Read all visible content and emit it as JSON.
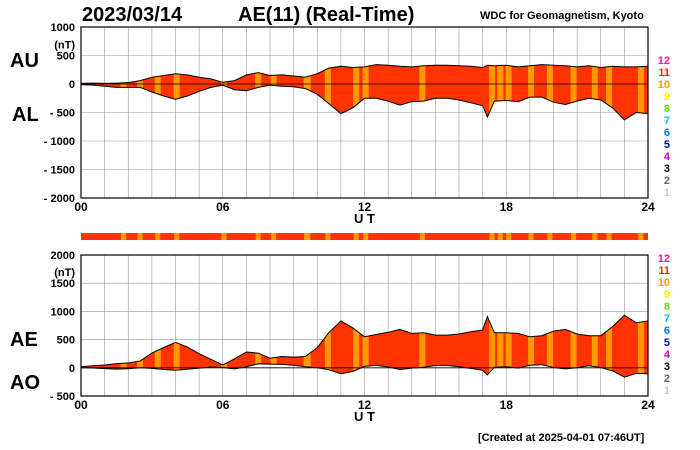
{
  "header": {
    "date": "2023/03/14",
    "title": "AE(11) (Real-Time)",
    "source": "WDC for Geomagnetism, Kyoto",
    "created": "[Created at 2025-04-01 07:46UT]"
  },
  "legend": {
    "levels": [
      "12",
      "11",
      "10",
      "9",
      "8",
      "7",
      "6",
      "5",
      "4",
      "3",
      "2",
      "1"
    ],
    "colors": [
      "#ff1493",
      "#ff2200",
      "#ff9900",
      "#ffee00",
      "#66dd00",
      "#00cccc",
      "#0077ff",
      "#0000cc",
      "#cc00cc",
      "#000000",
      "#666666",
      "#cccccc"
    ]
  },
  "colors": {
    "fill": "#ff3300",
    "stripe": "#ff9900",
    "line": "#000000",
    "grid": "#999999"
  },
  "chart_data": [
    {
      "type": "area",
      "panel": "upper",
      "labels": {
        "upper": "AU",
        "lower": "AL"
      },
      "unit": "(nT)",
      "ylim": [
        -2000,
        1000
      ],
      "yticks": [
        "1000",
        "500",
        "0",
        "- 500",
        "- 1000",
        "- 1500",
        "- 2000"
      ],
      "xlabel": "U T",
      "xlim": [
        0,
        24
      ],
      "xticks": [
        "00",
        "06",
        "12",
        "18",
        "24"
      ],
      "grid": true,
      "x": [
        0,
        0.5,
        1,
        1.5,
        2,
        2.5,
        3,
        3.5,
        4,
        4.5,
        5,
        5.5,
        6,
        6.5,
        7,
        7.5,
        8,
        8.5,
        9,
        9.5,
        10,
        10.5,
        11,
        11.5,
        12,
        12.5,
        13,
        13.5,
        14,
        14.5,
        15,
        15.5,
        16,
        16.5,
        17,
        17.2,
        17.5,
        18,
        18.5,
        19,
        19.5,
        20,
        20.5,
        21,
        21.5,
        22,
        22.5,
        23,
        23.5,
        24
      ],
      "series": [
        {
          "name": "AU",
          "values": [
            10,
            15,
            10,
            15,
            25,
            60,
            120,
            150,
            180,
            160,
            120,
            90,
            30,
            60,
            160,
            200,
            150,
            160,
            140,
            120,
            180,
            280,
            310,
            290,
            300,
            340,
            330,
            310,
            300,
            320,
            330,
            330,
            320,
            310,
            290,
            330,
            320,
            330,
            300,
            320,
            340,
            330,
            320,
            300,
            320,
            290,
            310,
            300,
            300,
            310
          ]
        },
        {
          "name": "AL",
          "values": [
            -10,
            -20,
            -40,
            -60,
            -60,
            -60,
            -140,
            -210,
            -270,
            -210,
            -130,
            -60,
            -20,
            -100,
            -120,
            -60,
            -20,
            -40,
            -50,
            -80,
            -180,
            -350,
            -520,
            -420,
            -250,
            -250,
            -300,
            -370,
            -310,
            -300,
            -250,
            -250,
            -280,
            -330,
            -380,
            -580,
            -300,
            -290,
            -310,
            -230,
            -230,
            -320,
            -360,
            -300,
            -250,
            -280,
            -420,
            -630,
            -500,
            -520
          ]
        }
      ],
      "stripe_hours": [
        1.8,
        2.5,
        3.25,
        4.05,
        6.05,
        7.5,
        8.15,
        9.55,
        9.6,
        10.45,
        11.65,
        12.05,
        14.45,
        17.4,
        17.75,
        18.1,
        19.05,
        19.85,
        20.85,
        21.75,
        22.35,
        23.7
      ]
    },
    {
      "type": "area",
      "panel": "lower",
      "labels": {
        "upper": "AE",
        "lower": "AO"
      },
      "unit": "(nT)",
      "ylim": [
        -500,
        2000
      ],
      "yticks": [
        "2000",
        "1500",
        "1000",
        "500",
        "0",
        "- 500"
      ],
      "xlabel": "U T",
      "xlim": [
        0,
        24
      ],
      "xticks": [
        "00",
        "06",
        "12",
        "18",
        "24"
      ],
      "grid": true,
      "x": [
        0,
        0.5,
        1,
        1.5,
        2,
        2.5,
        3,
        3.5,
        4,
        4.5,
        5,
        5.5,
        6,
        6.5,
        7,
        7.5,
        8,
        8.5,
        9,
        9.5,
        10,
        10.5,
        11,
        11.5,
        12,
        12.5,
        13,
        13.5,
        14,
        14.5,
        15,
        15.5,
        16,
        16.5,
        17,
        17.2,
        17.5,
        18,
        18.5,
        19,
        19.5,
        20,
        20.5,
        21,
        21.5,
        22,
        22.5,
        23,
        23.5,
        24
      ],
      "series": [
        {
          "name": "AE",
          "values": [
            20,
            35,
            50,
            75,
            85,
            120,
            260,
            360,
            450,
            370,
            250,
            150,
            50,
            160,
            280,
            260,
            170,
            200,
            190,
            200,
            360,
            630,
            830,
            710,
            550,
            590,
            630,
            680,
            610,
            620,
            580,
            580,
            600,
            640,
            670,
            910,
            620,
            620,
            610,
            550,
            570,
            650,
            680,
            600,
            570,
            570,
            730,
            930,
            800,
            830
          ]
        },
        {
          "name": "AO",
          "values": [
            0,
            -3,
            -15,
            -23,
            -18,
            0,
            -10,
            -30,
            -45,
            -25,
            -5,
            15,
            5,
            -20,
            20,
            70,
            65,
            60,
            45,
            20,
            0,
            -35,
            -105,
            -65,
            25,
            45,
            15,
            -30,
            -5,
            10,
            40,
            40,
            20,
            -10,
            -45,
            -125,
            10,
            20,
            -5,
            45,
            55,
            5,
            -20,
            0,
            35,
            5,
            -55,
            -165,
            -100,
            -105
          ]
        }
      ],
      "stripe_hours": [
        1.8,
        2.5,
        3.25,
        4.05,
        6.05,
        7.5,
        8.15,
        9.55,
        9.6,
        10.45,
        11.65,
        12.05,
        14.45,
        17.4,
        17.75,
        18.1,
        19.05,
        19.85,
        20.85,
        21.75,
        22.35,
        23.7
      ]
    }
  ]
}
